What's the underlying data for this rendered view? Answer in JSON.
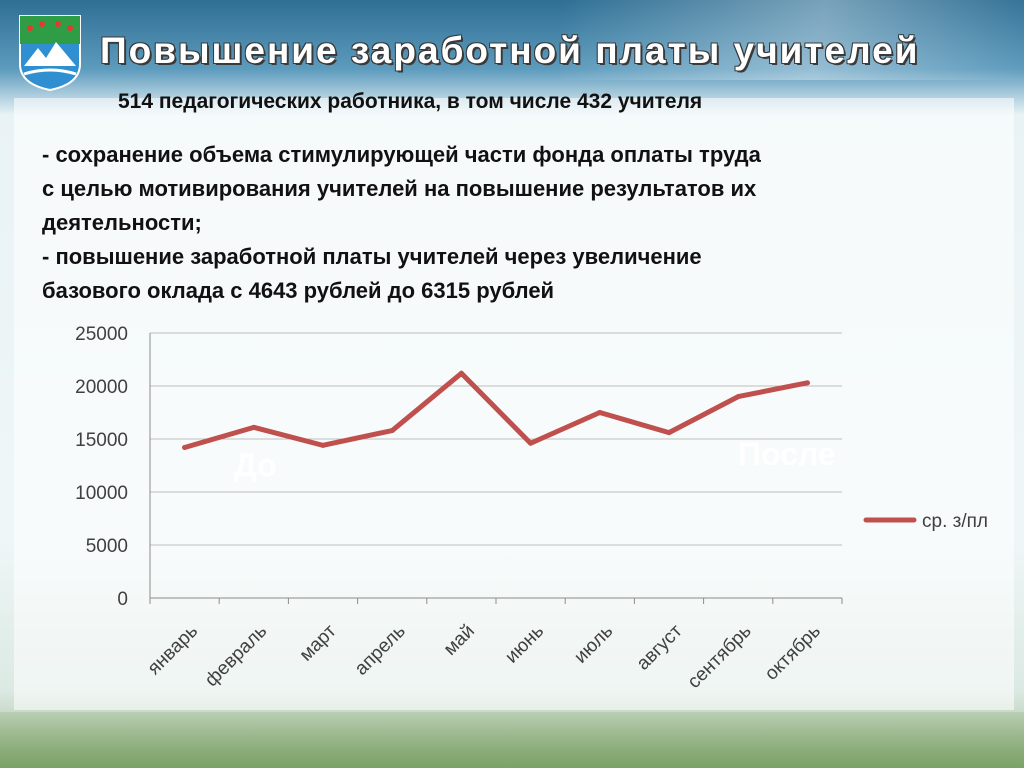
{
  "slide": {
    "title": "Повышение заработной платы учителей",
    "subtitle": "514 педагогических работника, в том числе 432 учителя",
    "bullets": [
      "- сохранение объема стимулирующей части фонда оплаты труда\nс целью мотивирования учителей на повышение результатов их\nдеятельности;",
      "- повышение заработной платы учителей через увеличение\nбазового оклада с 4643 рублей до 6315 рублей"
    ]
  },
  "colors": {
    "line": "#c0504d",
    "grid": "#bfbfbf",
    "axis": "#8c8c8c",
    "text": "#404040"
  },
  "chart_data": {
    "type": "line",
    "categories": [
      "январь",
      "февраль",
      "март",
      "апрель",
      "май",
      "июнь",
      "июль",
      "август",
      "сентябрь",
      "октябрь"
    ],
    "series": [
      {
        "name": "ср. з/пл",
        "values": [
          14200,
          16100,
          14400,
          15800,
          21200,
          14600,
          17500,
          15600,
          19000,
          20300
        ]
      }
    ],
    "ylim": [
      0,
      25000
    ],
    "yticks": [
      0,
      5000,
      10000,
      15000,
      20000,
      25000
    ],
    "grid": true,
    "legend": "right",
    "annotations": [
      "До",
      "После"
    ]
  }
}
